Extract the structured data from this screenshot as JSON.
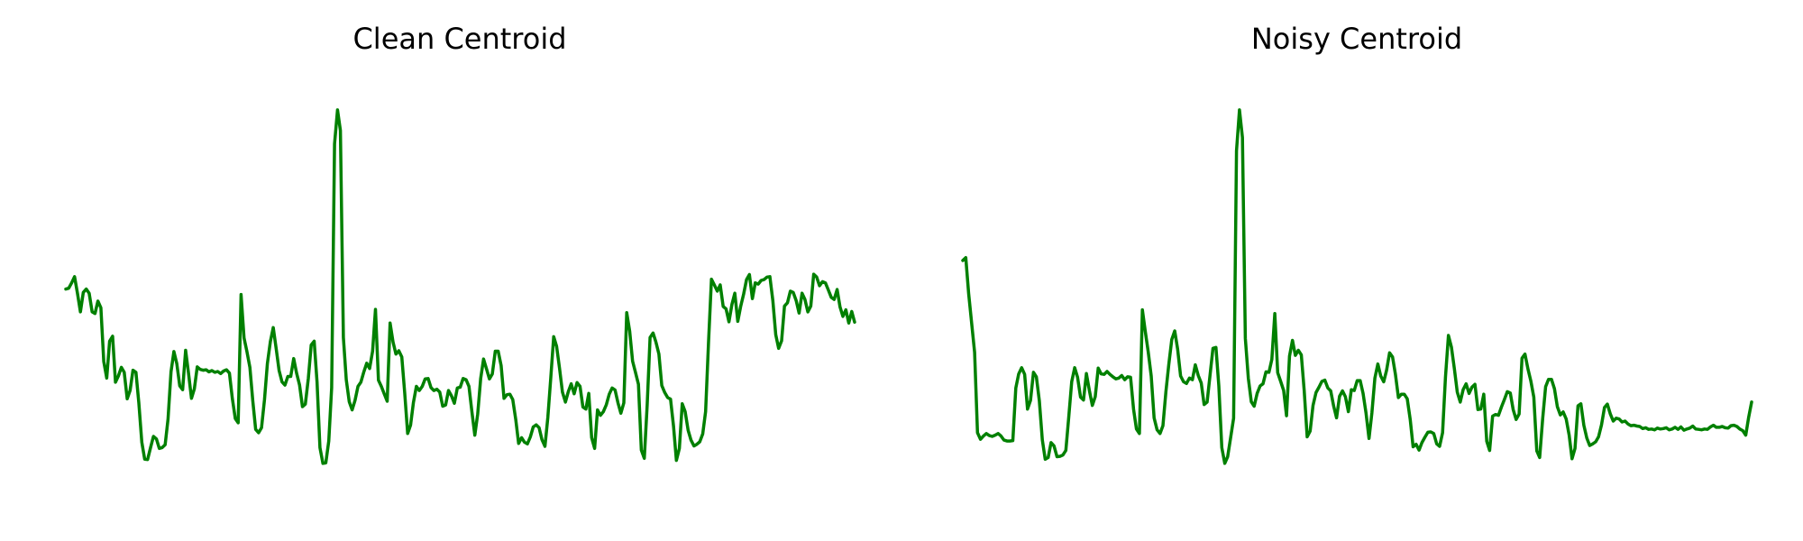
{
  "chart_data": [
    {
      "type": "line",
      "title": "Clean Centroid",
      "axes_visible": false,
      "grid": false,
      "line_color": "#008000",
      "ylim": [
        0,
        1
      ],
      "values": [
        0.515,
        0.517,
        0.53,
        0.545,
        0.504,
        0.46,
        0.507,
        0.515,
        0.505,
        0.46,
        0.456,
        0.486,
        0.47,
        0.34,
        0.3,
        0.389,
        0.401,
        0.29,
        0.305,
        0.326,
        0.314,
        0.25,
        0.27,
        0.319,
        0.314,
        0.24,
        0.145,
        0.104,
        0.103,
        0.132,
        0.159,
        0.153,
        0.13,
        0.132,
        0.139,
        0.201,
        0.315,
        0.364,
        0.335,
        0.281,
        0.272,
        0.367,
        0.312,
        0.251,
        0.274,
        0.327,
        0.321,
        0.319,
        0.32,
        0.315,
        0.318,
        0.314,
        0.316,
        0.311,
        0.317,
        0.32,
        0.312,
        0.251,
        0.202,
        0.192,
        0.502,
        0.397,
        0.364,
        0.326,
        0.245,
        0.176,
        0.168,
        0.18,
        0.248,
        0.335,
        0.388,
        0.422,
        0.372,
        0.318,
        0.291,
        0.283,
        0.304,
        0.304,
        0.347,
        0.312,
        0.283,
        0.231,
        0.237,
        0.299,
        0.38,
        0.389,
        0.29,
        0.132,
        0.094,
        0.095,
        0.148,
        0.277,
        0.866,
        0.948,
        0.898,
        0.398,
        0.296,
        0.243,
        0.223,
        0.246,
        0.28,
        0.29,
        0.315,
        0.336,
        0.323,
        0.365,
        0.466,
        0.295,
        0.28,
        0.262,
        0.244,
        0.433,
        0.387,
        0.358,
        0.366,
        0.351,
        0.265,
        0.166,
        0.186,
        0.241,
        0.28,
        0.27,
        0.28,
        0.298,
        0.299,
        0.277,
        0.27,
        0.273,
        0.266,
        0.232,
        0.235,
        0.27,
        0.257,
        0.239,
        0.276,
        0.278,
        0.299,
        0.296,
        0.28,
        0.218,
        0.162,
        0.213,
        0.299,
        0.346,
        0.322,
        0.298,
        0.31,
        0.365,
        0.365,
        0.33,
        0.251,
        0.26,
        0.261,
        0.248,
        0.2,
        0.142,
        0.156,
        0.145,
        0.141,
        0.158,
        0.182,
        0.187,
        0.18,
        0.151,
        0.135,
        0.205,
        0.302,
        0.4,
        0.377,
        0.323,
        0.266,
        0.242,
        0.267,
        0.286,
        0.262,
        0.289,
        0.28,
        0.23,
        0.225,
        0.263,
        0.156,
        0.13,
        0.223,
        0.21,
        0.219,
        0.235,
        0.261,
        0.276,
        0.271,
        0.24,
        0.215,
        0.24,
        0.458,
        0.413,
        0.341,
        0.314,
        0.285,
        0.126,
        0.106,
        0.235,
        0.398,
        0.409,
        0.387,
        0.358,
        0.282,
        0.265,
        0.253,
        0.249,
        0.184,
        0.101,
        0.13,
        0.238,
        0.219,
        0.174,
        0.15,
        0.136,
        0.14,
        0.146,
        0.165,
        0.219,
        0.389,
        0.539,
        0.525,
        0.51,
        0.525,
        0.473,
        0.467,
        0.436,
        0.478,
        0.505,
        0.437,
        0.473,
        0.503,
        0.538,
        0.55,
        0.492,
        0.53,
        0.527,
        0.536,
        0.538,
        0.544,
        0.545,
        0.487,
        0.405,
        0.372,
        0.39,
        0.474,
        0.482,
        0.51,
        0.507,
        0.487,
        0.457,
        0.505,
        0.49,
        0.46,
        0.474,
        0.551,
        0.544,
        0.523,
        0.533,
        0.53,
        0.513,
        0.495,
        0.49,
        0.514,
        0.472,
        0.449,
        0.465,
        0.433,
        0.461,
        0.435
      ]
    },
    {
      "type": "line",
      "title": "Noisy Centroid",
      "axes_visible": false,
      "grid": false,
      "line_color": "#008000",
      "ylim": [
        0,
        1
      ],
      "values": [
        0.584,
        0.591,
        0.504,
        0.433,
        0.362,
        0.168,
        0.152,
        0.16,
        0.166,
        0.161,
        0.159,
        0.162,
        0.166,
        0.16,
        0.15,
        0.148,
        0.148,
        0.149,
        0.276,
        0.31,
        0.325,
        0.309,
        0.225,
        0.246,
        0.314,
        0.303,
        0.245,
        0.151,
        0.104,
        0.108,
        0.144,
        0.136,
        0.11,
        0.111,
        0.114,
        0.125,
        0.205,
        0.291,
        0.325,
        0.302,
        0.254,
        0.247,
        0.311,
        0.27,
        0.234,
        0.255,
        0.324,
        0.31,
        0.309,
        0.316,
        0.309,
        0.303,
        0.298,
        0.3,
        0.306,
        0.296,
        0.303,
        0.302,
        0.225,
        0.177,
        0.166,
        0.465,
        0.413,
        0.363,
        0.305,
        0.204,
        0.175,
        0.166,
        0.185,
        0.267,
        0.333,
        0.393,
        0.414,
        0.37,
        0.305,
        0.291,
        0.287,
        0.3,
        0.296,
        0.332,
        0.306,
        0.288,
        0.236,
        0.242,
        0.308,
        0.372,
        0.374,
        0.281,
        0.132,
        0.094,
        0.11,
        0.156,
        0.203,
        0.849,
        0.948,
        0.881,
        0.396,
        0.3,
        0.243,
        0.232,
        0.263,
        0.281,
        0.286,
        0.315,
        0.314,
        0.345,
        0.456,
        0.313,
        0.292,
        0.27,
        0.209,
        0.353,
        0.391,
        0.355,
        0.367,
        0.356,
        0.27,
        0.158,
        0.172,
        0.234,
        0.265,
        0.278,
        0.292,
        0.295,
        0.276,
        0.269,
        0.232,
        0.204,
        0.256,
        0.269,
        0.255,
        0.219,
        0.272,
        0.27,
        0.294,
        0.294,
        0.263,
        0.215,
        0.154,
        0.216,
        0.3,
        0.334,
        0.305,
        0.291,
        0.319,
        0.361,
        0.351,
        0.309,
        0.253,
        0.261,
        0.261,
        0.25,
        0.2,
        0.134,
        0.14,
        0.126,
        0.144,
        0.157,
        0.169,
        0.17,
        0.166,
        0.141,
        0.135,
        0.168,
        0.302,
        0.403,
        0.375,
        0.324,
        0.266,
        0.242,
        0.272,
        0.286,
        0.263,
        0.278,
        0.285,
        0.224,
        0.225,
        0.261,
        0.147,
        0.125,
        0.208,
        0.212,
        0.21,
        0.23,
        0.248,
        0.267,
        0.264,
        0.224,
        0.2,
        0.213,
        0.348,
        0.358,
        0.322,
        0.293,
        0.254,
        0.124,
        0.108,
        0.201,
        0.279,
        0.297,
        0.297,
        0.274,
        0.231,
        0.211,
        0.218,
        0.201,
        0.162,
        0.105,
        0.13,
        0.233,
        0.238,
        0.186,
        0.155,
        0.137,
        0.141,
        0.146,
        0.158,
        0.187,
        0.229,
        0.237,
        0.213,
        0.196,
        0.203,
        0.201,
        0.194,
        0.196,
        0.189,
        0.185,
        0.186,
        0.184,
        0.183,
        0.178,
        0.18,
        0.176,
        0.177,
        0.175,
        0.179,
        0.177,
        0.178,
        0.18,
        0.175,
        0.177,
        0.181,
        0.176,
        0.182,
        0.174,
        0.177,
        0.179,
        0.184,
        0.177,
        0.176,
        0.175,
        0.177,
        0.176,
        0.182,
        0.186,
        0.181,
        0.181,
        0.183,
        0.18,
        0.179,
        0.185,
        0.186,
        0.183,
        0.177,
        0.173,
        0.162,
        0.205,
        0.242
      ]
    }
  ]
}
